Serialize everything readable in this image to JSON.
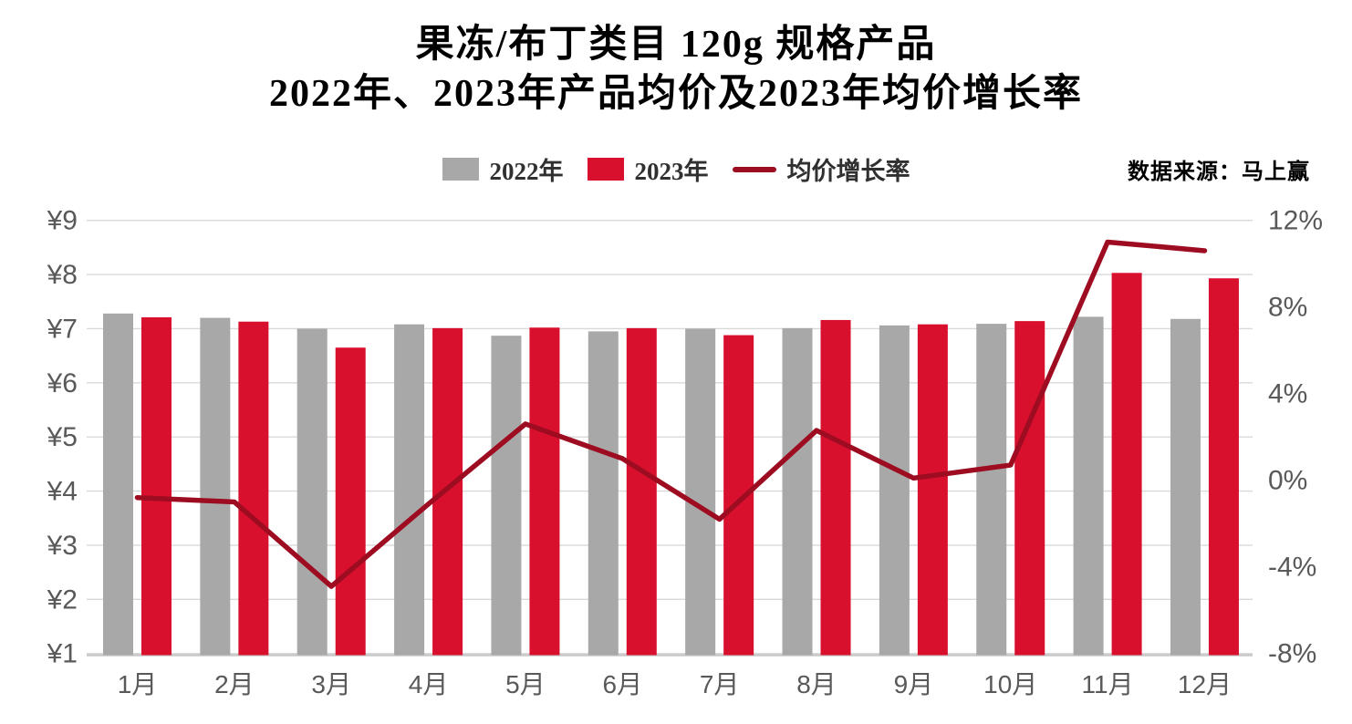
{
  "title": {
    "line1": "果冻/布丁类目 120g 规格产品",
    "line2": "2022年、2023年产品均价及2023年均价增长率"
  },
  "source": "数据来源：马上赢",
  "legend": [
    {
      "label": "2022年",
      "type": "swatch",
      "color": "#a8a8a8"
    },
    {
      "label": "2023年",
      "type": "swatch",
      "color": "#d8102e"
    },
    {
      "label": "均价增长率",
      "type": "line",
      "color": "#9d0c20"
    }
  ],
  "chart_data": {
    "type": "combo-bar-line",
    "categories": [
      "1月",
      "2月",
      "3月",
      "4月",
      "5月",
      "6月",
      "7月",
      "8月",
      "9月",
      "10月",
      "11月",
      "12月"
    ],
    "series": [
      {
        "name": "2022年",
        "type": "bar",
        "axis": "left",
        "color": "#a8a8a8",
        "values": [
          7.28,
          7.2,
          7.0,
          7.08,
          6.87,
          6.95,
          7.0,
          7.01,
          7.06,
          7.09,
          7.22,
          7.18
        ]
      },
      {
        "name": "2023年",
        "type": "bar",
        "axis": "left",
        "color": "#d8102e",
        "values": [
          7.21,
          7.13,
          6.65,
          7.01,
          7.02,
          7.01,
          6.88,
          7.16,
          7.08,
          7.14,
          8.03,
          7.93
        ]
      },
      {
        "name": "均价增长率",
        "type": "line",
        "axis": "right",
        "color": "#9d0c20",
        "values": [
          -0.8,
          -1.0,
          -4.9,
          -1.1,
          2.6,
          1.0,
          -1.8,
          2.3,
          0.1,
          0.7,
          11.0,
          10.6
        ]
      }
    ],
    "left_axis": {
      "unit": "¥",
      "min": 1,
      "max": 9,
      "ticks": [
        {
          "label": "¥9",
          "value": 9
        },
        {
          "label": "¥8",
          "value": 8
        },
        {
          "label": "¥7",
          "value": 7
        },
        {
          "label": "¥6",
          "value": 6
        },
        {
          "label": "¥5",
          "value": 5
        },
        {
          "label": "¥4",
          "value": 4
        },
        {
          "label": "¥3",
          "value": 3
        },
        {
          "label": "¥2",
          "value": 2
        },
        {
          "label": "¥1",
          "value": 1
        }
      ]
    },
    "right_axis": {
      "unit": "%",
      "min": -8,
      "max": 12,
      "ticks": [
        {
          "label": "12%",
          "value": 12
        },
        {
          "label": "8%",
          "value": 8
        },
        {
          "label": "4%",
          "value": 4
        },
        {
          "label": "0%",
          "value": 0
        },
        {
          "label": "-4%",
          "value": -4
        },
        {
          "label": "-8%",
          "value": -8
        }
      ]
    },
    "grid": "horizontal",
    "legend_position": "top-center"
  }
}
